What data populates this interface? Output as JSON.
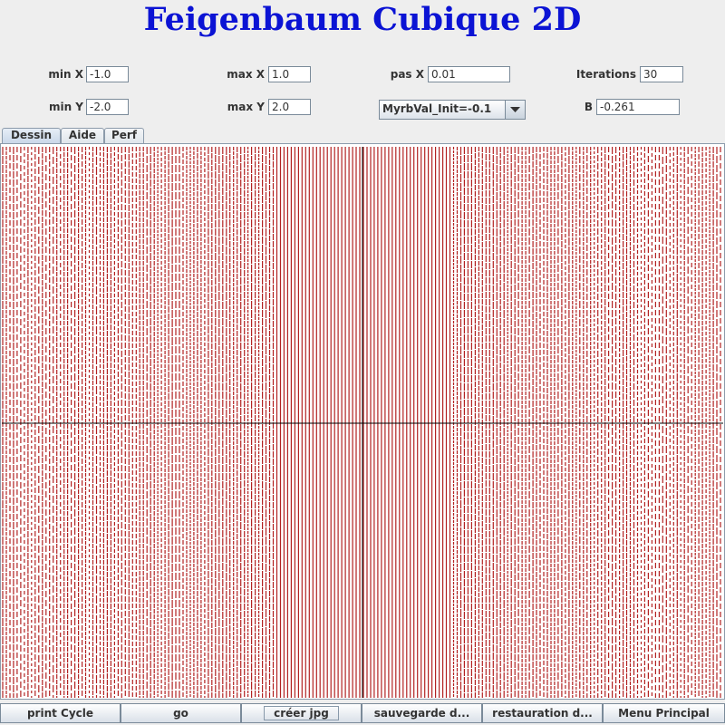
{
  "title": "Feigenbaum Cubique 2D",
  "params": {
    "min_x_label": "min X",
    "min_x_value": "-1.0",
    "max_x_label": "max X",
    "max_x_value": "1.0",
    "pas_x_label": "pas X",
    "pas_x_value": "0.01",
    "iterations_label": "Iterations",
    "iterations_value": "30",
    "min_y_label": "min Y",
    "min_y_value": "-2.0",
    "max_y_label": "max Y",
    "max_y_value": "2.0",
    "combo_value": "MyrbVal_Init=-0.1",
    "b_label": "B",
    "b_value": "-0.261"
  },
  "tabs": [
    "Dessin",
    "Aide",
    "Perf"
  ],
  "buttons": [
    "print Cycle",
    "go",
    "créer jpg",
    "sauvegarde d...",
    "restauration d...",
    "Menu Principal"
  ],
  "colors": {
    "plot_line": "#b22222",
    "axis": "#000000",
    "title": "#0b13d4"
  }
}
